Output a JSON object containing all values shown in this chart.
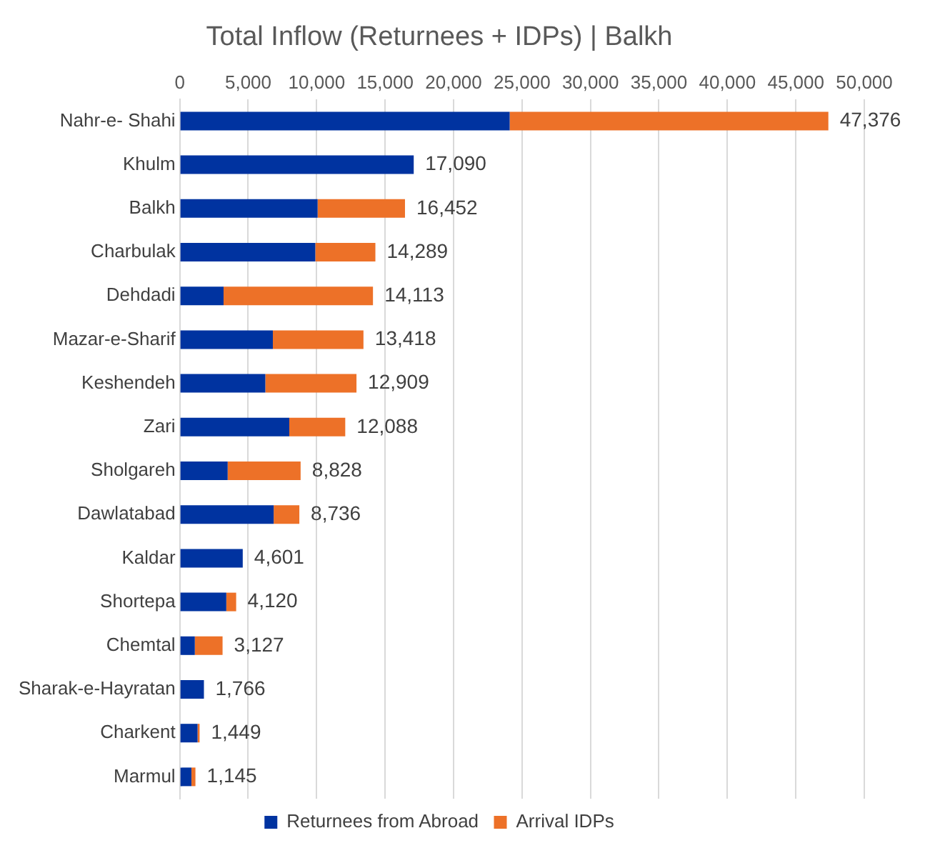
{
  "chart_data": {
    "type": "bar",
    "title": "Total Inflow (Returnees + IDPs) | Balkh",
    "orientation": "horizontal",
    "stacked": true,
    "categories": [
      "Nahr-e- Shahi",
      "Khulm",
      "Balkh",
      "Charbulak",
      "Dehdadi",
      "Mazar-e-Sharif",
      "Keshendeh",
      "Zari",
      "Sholgareh",
      "Dawlatabad",
      "Kaldar",
      "Shortepa",
      "Chemtal",
      "Sharak-e-Hayratan",
      "Charkent",
      "Marmul"
    ],
    "series": [
      {
        "name": "Returnees from Abroad",
        "color": "#0033a0",
        "values": [
          24100,
          17090,
          10070,
          9900,
          3200,
          6800,
          6250,
          8000,
          3500,
          6860,
          4601,
          3400,
          1100,
          1766,
          1300,
          850
        ]
      },
      {
        "name": "Arrival IDPs",
        "color": "#ed7128",
        "values": [
          23276,
          0,
          6382,
          4389,
          10913,
          6618,
          6659,
          4088,
          5328,
          1876,
          0,
          720,
          2027,
          0,
          149,
          295
        ]
      }
    ],
    "totals": [
      "47,376",
      "17,090",
      "16,452",
      "14,289",
      "14,113",
      "13,418",
      "12,909",
      "12,088",
      "8,828",
      "8,736",
      "4,601",
      "4,120",
      "3,127",
      "1,766",
      "1,449",
      "1,145"
    ],
    "xlim": [
      0,
      50000
    ],
    "xticks": [
      0,
      {
        "value": 5000,
        "label": "5,000"
      },
      {
        "value": 10000,
        "label": "10,000"
      },
      {
        "value": 15000,
        "label": "15,000"
      },
      {
        "value": 20000,
        "label": "20,000"
      },
      {
        "value": 25000,
        "label": "25,000"
      },
      {
        "value": 30000,
        "label": "30,000"
      },
      {
        "value": 35000,
        "label": "35,000"
      },
      {
        "value": 40000,
        "label": "40,000"
      },
      {
        "value": 45000,
        "label": "45,000"
      },
      {
        "value": 50000,
        "label": "50,000"
      }
    ],
    "grid": "x",
    "legend": "bottom"
  }
}
